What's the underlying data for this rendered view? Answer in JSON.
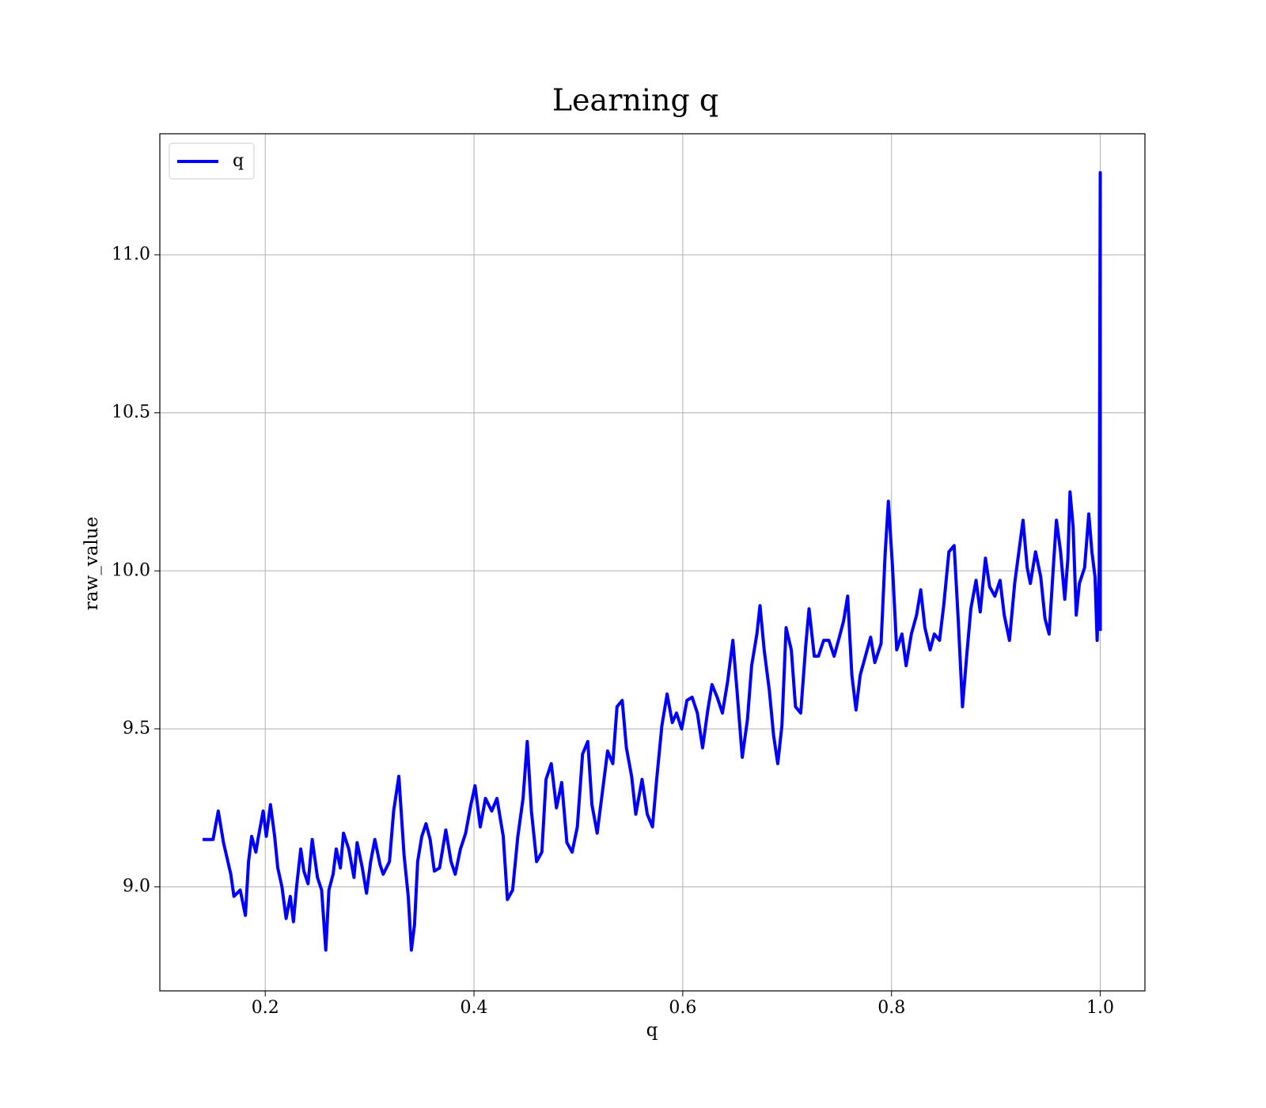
{
  "chart_data": {
    "type": "line",
    "title": "Learning q",
    "x_label": "q",
    "y_label": "raw_value",
    "xlim": [
      0.099,
      1.0428
    ],
    "ylim": [
      8.671,
      11.383
    ],
    "xticks": [
      0.2,
      0.4,
      0.6,
      0.8,
      {
        "value": 1,
        "label": "1.0"
      }
    ],
    "yticks": [
      {
        "value": 9,
        "label": "9.0"
      },
      9.5,
      {
        "value": 10,
        "label": "10.0"
      },
      10.5,
      {
        "value": 11,
        "label": "11.0"
      }
    ],
    "grid": true,
    "legend": "upper left",
    "x": [
      0.14,
      0.15,
      0.155,
      0.16,
      0.167,
      0.17,
      0.176,
      0.181,
      0.184,
      0.187,
      0.191,
      0.193,
      0.198,
      0.201,
      0.205,
      0.209,
      0.212,
      0.216,
      0.22,
      0.224,
      0.227,
      0.23,
      0.234,
      0.237,
      0.241,
      0.245,
      0.25,
      0.254,
      0.258,
      0.261,
      0.265,
      0.268,
      0.272,
      0.275,
      0.28,
      0.285,
      0.288,
      0.293,
      0.297,
      0.301,
      0.305,
      0.31,
      0.313,
      0.319,
      0.323,
      0.328,
      0.333,
      0.337,
      0.34,
      0.343,
      0.346,
      0.35,
      0.354,
      0.358,
      0.362,
      0.367,
      0.373,
      0.378,
      0.382,
      0.387,
      0.392,
      0.397,
      0.401,
      0.406,
      0.411,
      0.417,
      0.422,
      0.428,
      0.432,
      0.437,
      0.442,
      0.447,
      0.451,
      0.455,
      0.46,
      0.465,
      0.469,
      0.474,
      0.479,
      0.484,
      0.489,
      0.494,
      0.499,
      0.504,
      0.509,
      0.513,
      0.518,
      0.523,
      0.528,
      0.533,
      0.537,
      0.542,
      0.546,
      0.551,
      0.555,
      0.561,
      0.566,
      0.571,
      0.575,
      0.58,
      0.585,
      0.59,
      0.594,
      0.599,
      0.604,
      0.609,
      0.614,
      0.619,
      0.624,
      0.628,
      0.633,
      0.638,
      0.643,
      0.648,
      0.652,
      0.657,
      0.662,
      0.666,
      0.671,
      0.674,
      0.678,
      0.683,
      0.687,
      0.691,
      0.695,
      0.699,
      0.704,
      0.708,
      0.713,
      0.718,
      0.721,
      0.726,
      0.73,
      0.735,
      0.74,
      0.745,
      0.75,
      0.754,
      0.758,
      0.762,
      0.766,
      0.77,
      0.775,
      0.78,
      0.784,
      0.79,
      0.794,
      0.797,
      0.801,
      0.805,
      0.81,
      0.814,
      0.819,
      0.824,
      0.828,
      0.832,
      0.837,
      0.841,
      0.846,
      0.85,
      0.855,
      0.86,
      0.864,
      0.868,
      0.872,
      0.876,
      0.881,
      0.885,
      0.89,
      0.894,
      0.899,
      0.904,
      0.908,
      0.913,
      0.918,
      0.922,
      0.926,
      0.93,
      0.933,
      0.938,
      0.943,
      0.947,
      0.951,
      0.955,
      0.958,
      0.962,
      0.966,
      0.969,
      0.971,
      0.974,
      0.977,
      0.98,
      0.985,
      0.989,
      0.992,
      0.995,
      0.997,
      0.999,
      1.0,
      1.0
    ],
    "series": [
      {
        "name": "q",
        "color": "#0000ff",
        "values": [
          9.15,
          9.15,
          9.24,
          9.14,
          9.04,
          8.97,
          8.99,
          8.91,
          9.08,
          9.16,
          9.11,
          9.15,
          9.24,
          9.16,
          9.26,
          9.16,
          9.06,
          9.0,
          8.9,
          8.97,
          8.89,
          9.0,
          9.12,
          9.05,
          9.01,
          9.15,
          9.03,
          8.99,
          8.8,
          8.99,
          9.04,
          9.12,
          9.06,
          9.17,
          9.12,
          9.03,
          9.14,
          9.06,
          8.98,
          9.08,
          9.15,
          9.07,
          9.04,
          9.08,
          9.24,
          9.35,
          9.1,
          8.97,
          8.8,
          8.88,
          9.08,
          9.16,
          9.2,
          9.15,
          9.05,
          9.06,
          9.18,
          9.08,
          9.04,
          9.12,
          9.17,
          9.26,
          9.32,
          9.19,
          9.28,
          9.24,
          9.28,
          9.16,
          8.96,
          8.99,
          9.16,
          9.28,
          9.46,
          9.24,
          9.08,
          9.11,
          9.34,
          9.39,
          9.25,
          9.33,
          9.14,
          9.11,
          9.19,
          9.42,
          9.46,
          9.26,
          9.17,
          9.3,
          9.43,
          9.39,
          9.57,
          9.59,
          9.44,
          9.35,
          9.23,
          9.34,
          9.23,
          9.19,
          9.34,
          9.51,
          9.61,
          9.52,
          9.55,
          9.5,
          9.59,
          9.6,
          9.55,
          9.44,
          9.56,
          9.64,
          9.6,
          9.55,
          9.65,
          9.78,
          9.62,
          9.41,
          9.53,
          9.7,
          9.8,
          9.89,
          9.75,
          9.62,
          9.48,
          9.39,
          9.51,
          9.82,
          9.75,
          9.57,
          9.55,
          9.77,
          9.88,
          9.73,
          9.73,
          9.78,
          9.78,
          9.73,
          9.79,
          9.84,
          9.92,
          9.67,
          9.56,
          9.67,
          9.73,
          9.79,
          9.71,
          9.77,
          10.06,
          10.22,
          10.01,
          9.75,
          9.8,
          9.7,
          9.8,
          9.86,
          9.94,
          9.82,
          9.75,
          9.8,
          9.78,
          9.89,
          10.06,
          10.08,
          9.84,
          9.57,
          9.73,
          9.88,
          9.97,
          9.87,
          10.04,
          9.95,
          9.92,
          9.97,
          9.86,
          9.78,
          9.96,
          10.06,
          10.16,
          10.01,
          9.96,
          10.06,
          9.98,
          9.85,
          9.8,
          10.01,
          10.16,
          10.06,
          9.91,
          10.04,
          10.25,
          10.14,
          9.86,
          9.96,
          10.01,
          10.18,
          10.06,
          9.98,
          9.78,
          10.01,
          11.26,
          9.81
        ]
      }
    ]
  }
}
